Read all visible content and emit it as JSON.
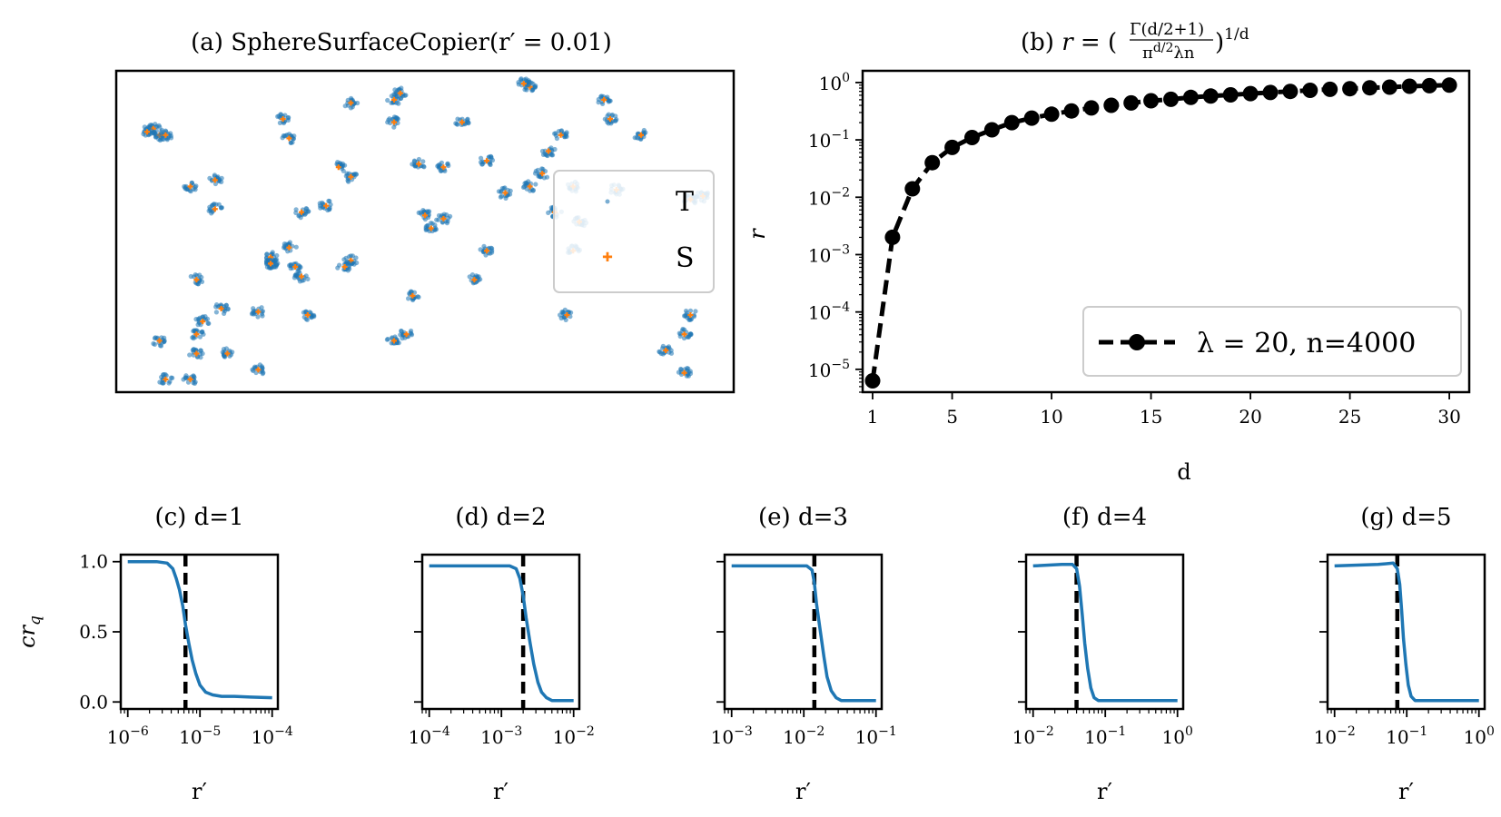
{
  "chart_data": [
    {
      "panel": "a",
      "type": "scatter",
      "title": "(a) SphereSurfaceCopier(r′ = 0.01)",
      "axes_visible": false,
      "legend": {
        "placement": "right",
        "entries": [
          "T",
          "S"
        ]
      },
      "series": [
        {
          "name": "T",
          "color": "#1f77b4",
          "marker": "dot"
        },
        {
          "name": "S",
          "color": "#ff7f0e",
          "marker": "plus"
        }
      ],
      "xlim": [
        0,
        1
      ],
      "ylim": [
        0,
        1
      ],
      "clusters": [
        [
          0.13,
          0.18
        ],
        [
          0.18,
          0.12
        ],
        [
          0.23,
          0.07
        ],
        [
          0.17,
          0.26
        ],
        [
          0.25,
          0.4
        ],
        [
          0.28,
          0.45
        ],
        [
          0.13,
          0.35
        ],
        [
          0.07,
          0.8
        ],
        [
          0.16,
          0.57
        ],
        [
          0.38,
          0.67
        ],
        [
          0.27,
          0.85
        ],
        [
          0.36,
          0.7
        ],
        [
          0.46,
          0.93
        ],
        [
          0.38,
          0.9
        ],
        [
          0.45,
          0.84
        ],
        [
          0.53,
          0.7
        ],
        [
          0.49,
          0.71
        ],
        [
          0.5,
          0.55
        ],
        [
          0.51,
          0.51
        ],
        [
          0.56,
          0.84
        ],
        [
          0.53,
          0.54
        ],
        [
          0.6,
          0.44
        ],
        [
          0.63,
          0.62
        ],
        [
          0.72,
          0.8
        ],
        [
          0.74,
          0.64
        ],
        [
          0.75,
          0.53
        ],
        [
          0.67,
          0.95
        ],
        [
          0.66,
          0.96
        ],
        [
          0.79,
          0.91
        ],
        [
          0.85,
          0.8
        ],
        [
          0.93,
          0.6
        ],
        [
          0.13,
          0.12
        ],
        [
          0.07,
          0.16
        ],
        [
          0.08,
          0.04
        ],
        [
          0.16,
          0.66
        ],
        [
          0.12,
          0.64
        ],
        [
          0.23,
          0.25
        ],
        [
          0.14,
          0.22
        ],
        [
          0.12,
          0.04
        ],
        [
          0.06,
          0.82
        ],
        [
          0.05,
          0.81
        ],
        [
          0.08,
          0.8
        ],
        [
          0.25,
          0.42
        ],
        [
          0.3,
          0.56
        ],
        [
          0.48,
          0.3
        ],
        [
          0.38,
          0.41
        ],
        [
          0.45,
          0.91
        ],
        [
          0.8,
          0.85
        ],
        [
          0.81,
          0.63
        ],
        [
          0.73,
          0.24
        ],
        [
          0.67,
          0.64
        ],
        [
          0.6,
          0.72
        ],
        [
          0.95,
          0.61
        ],
        [
          0.92,
          0.18
        ],
        [
          0.92,
          0.06
        ],
        [
          0.89,
          0.13
        ],
        [
          0.93,
          0.24
        ],
        [
          0.74,
          0.44
        ],
        [
          0.71,
          0.56
        ],
        [
          0.7,
          0.75
        ],
        [
          0.69,
          0.68
        ],
        [
          0.58,
          0.35
        ],
        [
          0.47,
          0.18
        ],
        [
          0.45,
          0.16
        ],
        [
          0.28,
          0.79
        ],
        [
          0.34,
          0.58
        ],
        [
          0.37,
          0.39
        ],
        [
          0.25,
          0.4
        ],
        [
          0.29,
          0.39
        ],
        [
          0.3,
          0.36
        ],
        [
          0.31,
          0.24
        ]
      ]
    },
    {
      "panel": "b",
      "type": "line",
      "title": "(b) r = (Γ(d/2+1) / (π^{d/2} λ n))^{1/d}",
      "xlabel": "d",
      "ylabel": "r",
      "xscale": "linear",
      "yscale": "log",
      "xlim": [
        0.5,
        31
      ],
      "ylim": [
        4e-06,
        1.6
      ],
      "xticks": [
        1,
        5,
        10,
        15,
        20,
        25,
        30
      ],
      "yticks": [
        1e-05,
        0.0001,
        0.001,
        0.01,
        0.1,
        1
      ],
      "ytick_labels": [
        {
          "base": "10",
          "exp": "−5"
        },
        {
          "base": "10",
          "exp": "−4"
        },
        {
          "base": "10",
          "exp": "−3"
        },
        {
          "base": "10",
          "exp": "−2"
        },
        {
          "base": "10",
          "exp": "−1"
        },
        {
          "base": "10",
          "exp": "0"
        }
      ],
      "legend": {
        "placement": "bottom-right",
        "entries": [
          "λ = 20, n=4000"
        ]
      },
      "series": [
        {
          "name": "λ = 20, n=4000",
          "style": "dashed-with-markers",
          "color": "#000000",
          "x": [
            1,
            2,
            3,
            4,
            5,
            6,
            7,
            8,
            9,
            10,
            11,
            12,
            13,
            14,
            15,
            16,
            17,
            18,
            19,
            20,
            21,
            22,
            23,
            24,
            25,
            26,
            27,
            28,
            29,
            30
          ],
          "y": [
            6.3e-06,
            0.002,
            0.014,
            0.04,
            0.074,
            0.11,
            0.15,
            0.2,
            0.24,
            0.28,
            0.32,
            0.36,
            0.4,
            0.44,
            0.48,
            0.51,
            0.55,
            0.58,
            0.61,
            0.64,
            0.67,
            0.7,
            0.73,
            0.76,
            0.78,
            0.81,
            0.83,
            0.86,
            0.88,
            0.9
          ]
        }
      ]
    },
    {
      "panel": "c",
      "type": "line",
      "title": "(c) d=1",
      "xlabel": "r′",
      "ylabel": "cr_q",
      "xscale": "log",
      "xlim": [
        8e-07,
        0.00012
      ],
      "ylim": [
        -0.05,
        1.05
      ],
      "yticks": [
        0,
        0.5,
        1
      ],
      "ytick_labels": [
        "0.0",
        "0.5",
        "1.0"
      ],
      "xticks": [
        1e-06,
        1e-05,
        0.0001
      ],
      "xtick_labels": [
        {
          "base": "10",
          "exp": "−6"
        },
        {
          "base": "10",
          "exp": "−5"
        },
        {
          "base": "10",
          "exp": "−4"
        }
      ],
      "threshold_r": 6.3e-06,
      "series": [
        {
          "name": "cr_q",
          "color": "#1f77b4",
          "x": [
            1e-06,
            2.5e-06,
            3.5e-06,
            4.2e-06,
            4.7e-06,
            5.2e-06,
            5.8e-06,
            6.3e-06,
            7e-06,
            7.8e-06,
            8.8e-06,
            1e-05,
            1.2e-05,
            1.5e-05,
            2e-05,
            3e-05,
            5e-05,
            0.0001
          ],
          "y": [
            1.0,
            1.0,
            0.99,
            0.95,
            0.88,
            0.8,
            0.68,
            0.55,
            0.42,
            0.3,
            0.2,
            0.12,
            0.07,
            0.05,
            0.04,
            0.04,
            0.035,
            0.03
          ]
        }
      ]
    },
    {
      "panel": "d",
      "type": "line",
      "title": "(d) d=2",
      "xlabel": "r′",
      "ylabel": "",
      "xscale": "log",
      "xlim": [
        8e-05,
        0.012
      ],
      "ylim": [
        -0.05,
        1.05
      ],
      "yticks": [
        0,
        0.5,
        1
      ],
      "xticks": [
        0.0001,
        0.001,
        0.01
      ],
      "xtick_labels": [
        {
          "base": "10",
          "exp": "−4"
        },
        {
          "base": "10",
          "exp": "−3"
        },
        {
          "base": "10",
          "exp": "−2"
        }
      ],
      "threshold_r": 0.002,
      "series": [
        {
          "name": "cr_q",
          "color": "#1f77b4",
          "x": [
            0.0001,
            0.0005,
            0.0013,
            0.0016,
            0.0018,
            0.002,
            0.0022,
            0.0025,
            0.0028,
            0.0032,
            0.0036,
            0.0042,
            0.005,
            0.006,
            0.008,
            0.01
          ],
          "y": [
            0.97,
            0.97,
            0.97,
            0.95,
            0.88,
            0.76,
            0.6,
            0.42,
            0.27,
            0.14,
            0.07,
            0.03,
            0.01,
            0.01,
            0.01,
            0.01
          ]
        }
      ]
    },
    {
      "panel": "e",
      "type": "line",
      "title": "(e) d=3",
      "xlabel": "r′",
      "ylabel": "",
      "xscale": "log",
      "xlim": [
        0.0008,
        0.12
      ],
      "ylim": [
        -0.05,
        1.05
      ],
      "yticks": [
        0,
        0.5,
        1
      ],
      "xticks": [
        0.001,
        0.01,
        0.1
      ],
      "xtick_labels": [
        {
          "base": "10",
          "exp": "−3"
        },
        {
          "base": "10",
          "exp": "−2"
        },
        {
          "base": "10",
          "exp": "−1"
        }
      ],
      "threshold_r": 0.014,
      "series": [
        {
          "name": "cr_q",
          "color": "#1f77b4",
          "x": [
            0.001,
            0.005,
            0.011,
            0.013,
            0.014,
            0.015,
            0.017,
            0.019,
            0.021,
            0.024,
            0.028,
            0.033,
            0.04,
            0.06,
            0.1
          ],
          "y": [
            0.97,
            0.97,
            0.97,
            0.94,
            0.85,
            0.7,
            0.5,
            0.32,
            0.18,
            0.08,
            0.03,
            0.01,
            0.01,
            0.01,
            0.01
          ]
        }
      ]
    },
    {
      "panel": "f",
      "type": "line",
      "title": "(f) d=4",
      "xlabel": "r′",
      "ylabel": "",
      "xscale": "log",
      "xlim": [
        0.008,
        1.2
      ],
      "ylim": [
        -0.05,
        1.05
      ],
      "yticks": [
        0,
        0.5,
        1
      ],
      "xticks": [
        0.01,
        0.1,
        1
      ],
      "xtick_labels": [
        {
          "base": "10",
          "exp": "−2"
        },
        {
          "base": "10",
          "exp": "−1"
        },
        {
          "base": "10",
          "exp": "0"
        }
      ],
      "threshold_r": 0.04,
      "series": [
        {
          "name": "cr_q",
          "color": "#1f77b4",
          "x": [
            0.01,
            0.025,
            0.035,
            0.04,
            0.044,
            0.048,
            0.052,
            0.057,
            0.063,
            0.07,
            0.08,
            0.1,
            0.2,
            0.5,
            1.0
          ],
          "y": [
            0.97,
            0.98,
            0.98,
            0.95,
            0.82,
            0.62,
            0.42,
            0.24,
            0.1,
            0.03,
            0.01,
            0.01,
            0.01,
            0.01,
            0.01
          ]
        }
      ]
    },
    {
      "panel": "g",
      "type": "line",
      "title": "(g) d=5",
      "xlabel": "r′",
      "ylabel": "",
      "xscale": "log",
      "xlim": [
        0.008,
        1.2
      ],
      "ylim": [
        -0.05,
        1.05
      ],
      "yticks": [
        0,
        0.5,
        1
      ],
      "xticks": [
        0.01,
        0.1,
        1
      ],
      "xtick_labels": [
        {
          "base": "10",
          "exp": "−2"
        },
        {
          "base": "10",
          "exp": "−1"
        },
        {
          "base": "10",
          "exp": "0"
        }
      ],
      "threshold_r": 0.074,
      "series": [
        {
          "name": "cr_q",
          "color": "#1f77b4",
          "x": [
            0.01,
            0.04,
            0.065,
            0.074,
            0.08,
            0.085,
            0.09,
            0.097,
            0.105,
            0.115,
            0.13,
            0.16,
            0.3,
            0.6,
            1.0
          ],
          "y": [
            0.97,
            0.98,
            0.99,
            0.95,
            0.84,
            0.65,
            0.45,
            0.27,
            0.12,
            0.04,
            0.01,
            0.01,
            0.01,
            0.01,
            0.01
          ]
        }
      ]
    }
  ]
}
